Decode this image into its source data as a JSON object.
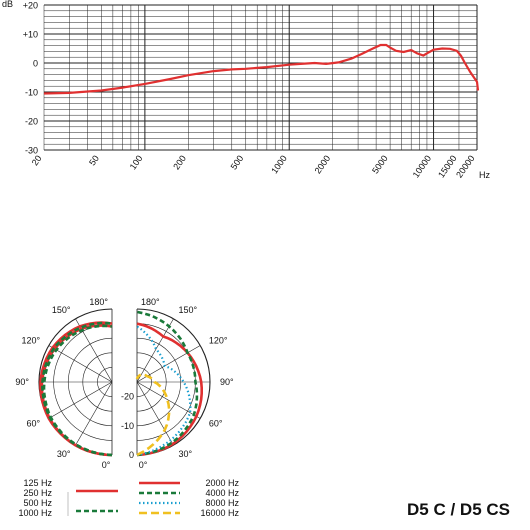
{
  "chart_data": [
    {
      "type": "line",
      "title": "",
      "xlabel": "Hz",
      "ylabel": "dB",
      "x_scale": "log",
      "xlim": [
        20,
        20000
      ],
      "ylim": [
        -30,
        20
      ],
      "y_ticks": [
        "+20",
        "+10",
        "0",
        "-10",
        "-20",
        "-30"
      ],
      "x_ticks": [
        "20",
        "50",
        "100",
        "200",
        "500",
        "1000",
        "2000",
        "5000",
        "10000",
        "15000",
        "20000"
      ],
      "grid": true,
      "series": [
        {
          "color": "#e03030",
          "points": [
            [
              20,
              -10.5
            ],
            [
              30,
              -10.3
            ],
            [
              50,
              -9.5
            ],
            [
              70,
              -8.5
            ],
            [
              100,
              -7.2
            ],
            [
              150,
              -5.5
            ],
            [
              200,
              -4.2
            ],
            [
              300,
              -2.8
            ],
            [
              400,
              -2.2
            ],
            [
              500,
              -2.0
            ],
            [
              700,
              -1.4
            ],
            [
              1000,
              -0.6
            ],
            [
              1200,
              -0.3
            ],
            [
              1500,
              0.0
            ],
            [
              1800,
              -0.3
            ],
            [
              2200,
              0.2
            ],
            [
              2700,
              1.5
            ],
            [
              3200,
              3.2
            ],
            [
              3800,
              5.0
            ],
            [
              4300,
              6.2
            ],
            [
              4700,
              6.2
            ],
            [
              5000,
              5.3
            ],
            [
              5500,
              4.2
            ],
            [
              6200,
              3.8
            ],
            [
              7000,
              4.5
            ],
            [
              7700,
              3.3
            ],
            [
              8500,
              2.6
            ],
            [
              9200,
              3.6
            ],
            [
              10000,
              4.6
            ],
            [
              11500,
              5.0
            ],
            [
              13000,
              4.9
            ],
            [
              14500,
              4.2
            ],
            [
              15500,
              2.5
            ],
            [
              16500,
              0.0
            ],
            [
              18000,
              -3.2
            ],
            [
              20000,
              -6.5
            ],
            [
              22000,
              -9.5
            ]
          ]
        }
      ]
    },
    {
      "type": "polar",
      "angle_labels": [
        "180°",
        "150°",
        "120°",
        "90°",
        "60°",
        "30°",
        "0°"
      ],
      "level_labels": [
        "-20",
        "-10",
        "0"
      ],
      "rlim": [
        -25,
        0
      ],
      "legend_position": "bottom",
      "left_half": {
        "series": [
          {
            "name": "125 Hz",
            "color": "#e03030",
            "dash": "solid",
            "points": [
              [
                0,
                0
              ],
              [
                30,
                0
              ],
              [
                60,
                0
              ],
              [
                90,
                -0.5
              ],
              [
                120,
                -1.5
              ],
              [
                150,
                -3
              ],
              [
                180,
                -5
              ]
            ]
          },
          {
            "name": "250 Hz",
            "color": "#e03030",
            "dash": "solid",
            "points": [
              [
                0,
                0
              ],
              [
                30,
                0
              ],
              [
                60,
                -0.3
              ],
              [
                90,
                -1
              ],
              [
                120,
                -2.3
              ],
              [
                150,
                -4
              ],
              [
                180,
                -6
              ]
            ]
          },
          {
            "name": "500 Hz",
            "color": "#1a7a3a",
            "dash": "dashed",
            "points": [
              [
                0,
                0
              ],
              [
                30,
                -0.2
              ],
              [
                60,
                -0.5
              ],
              [
                90,
                -1.2
              ],
              [
                120,
                -2
              ],
              [
                150,
                -3.5
              ],
              [
                180,
                -5
              ]
            ]
          },
          {
            "name": "1000 Hz",
            "color": "#1a7a3a",
            "dash": "dashed",
            "points": [
              [
                0,
                0
              ],
              [
                30,
                -0.3
              ],
              [
                60,
                -0.8
              ],
              [
                90,
                -1.8
              ],
              [
                120,
                -3
              ],
              [
                150,
                -4.5
              ],
              [
                180,
                -6
              ]
            ]
          }
        ]
      },
      "right_half": {
        "series": [
          {
            "name": "2000 Hz",
            "color": "#e03030",
            "dash": "solid",
            "points": [
              [
                0,
                0
              ],
              [
                30,
                -0.5
              ],
              [
                60,
                -1.5
              ],
              [
                90,
                -3
              ],
              [
                120,
                -5
              ],
              [
                150,
                -7
              ],
              [
                180,
                -5
              ]
            ]
          },
          {
            "name": "4000 Hz",
            "color": "#1a7a3a",
            "dash": "dashed",
            "points": [
              [
                0,
                0
              ],
              [
                30,
                -1
              ],
              [
                60,
                -2.5
              ],
              [
                90,
                -5
              ],
              [
                120,
                -5
              ],
              [
                150,
                -3
              ],
              [
                180,
                -1
              ]
            ]
          },
          {
            "name": "8000 Hz",
            "color": "#1a9fd0",
            "dash": "dotted",
            "points": [
              [
                0,
                0
              ],
              [
                30,
                -2
              ],
              [
                60,
                -4
              ],
              [
                90,
                -9
              ],
              [
                120,
                -14
              ],
              [
                150,
                -12
              ],
              [
                180,
                -6
              ]
            ]
          },
          {
            "name": "16000 Hz",
            "color": "#f0c020",
            "dash": "longdash",
            "points": [
              [
                0,
                0
              ],
              [
                30,
                -6
              ],
              [
                60,
                -13
              ],
              [
                90,
                -19
              ],
              [
                120,
                -21
              ],
              [
                150,
                -22
              ],
              [
                180,
                -24
              ]
            ]
          }
        ]
      }
    }
  ],
  "model": "D5 C / D5 CS"
}
